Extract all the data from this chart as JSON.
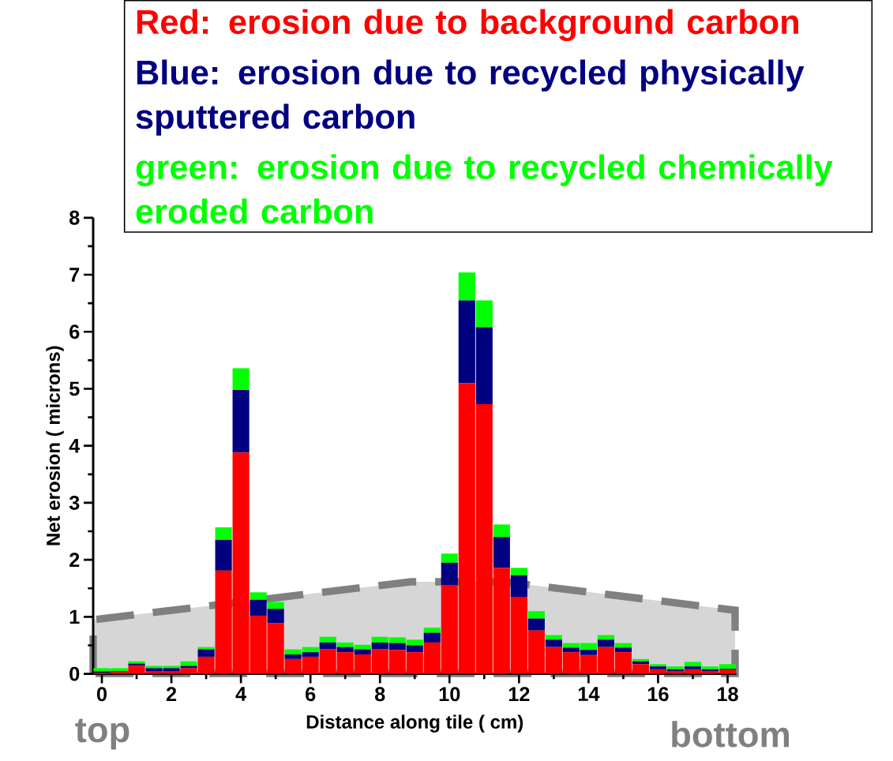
{
  "chart_data": {
    "type": "bar",
    "stacked": true,
    "xlabel": "Distance along tile ( cm)",
    "ylabel": "Net erosion ( microns)",
    "x": [
      0,
      0.5,
      1,
      1.5,
      2,
      2.5,
      3,
      3.5,
      4,
      4.5,
      5,
      5.5,
      6,
      6.5,
      7,
      7.5,
      8,
      8.5,
      9,
      9.5,
      10,
      10.5,
      11,
      11.5,
      12,
      12.5,
      13,
      13.5,
      14,
      14.5,
      15,
      15.5,
      16,
      16.5,
      17,
      17.5,
      18
    ],
    "series": [
      {
        "name": "Red: erosion due to background carbon",
        "color": "#ff0000",
        "values": [
          0.02,
          0.05,
          0.14,
          0.05,
          0.05,
          0.1,
          0.3,
          1.81,
          3.88,
          1.02,
          0.89,
          0.26,
          0.3,
          0.43,
          0.38,
          0.34,
          0.43,
          0.42,
          0.38,
          0.55,
          1.56,
          5.1,
          4.73,
          1.86,
          1.35,
          0.76,
          0.47,
          0.38,
          0.33,
          0.47,
          0.38,
          0.17,
          0.08,
          0.05,
          0.08,
          0.05,
          0.08
        ]
      },
      {
        "name": "Blue: erosion due to recycled physically sputtered carbon",
        "color": "#000080",
        "values": [
          0.02,
          0,
          0.04,
          0.05,
          0.05,
          0.04,
          0.13,
          0.54,
          1.1,
          0.28,
          0.25,
          0.08,
          0.08,
          0.12,
          0.09,
          0.09,
          0.12,
          0.12,
          0.12,
          0.17,
          0.39,
          1.45,
          1.35,
          0.54,
          0.38,
          0.21,
          0.13,
          0.08,
          0.09,
          0.13,
          0.08,
          0.05,
          0.05,
          0.03,
          0.05,
          0.03,
          0.01
        ]
      },
      {
        "name": "green: erosion due to recycled chemically eroded carbon",
        "color": "#00ff00",
        "values": [
          0.06,
          0.05,
          0.04,
          0.04,
          0.04,
          0.08,
          0.04,
          0.22,
          0.38,
          0.13,
          0.12,
          0.09,
          0.09,
          0.1,
          0.08,
          0.08,
          0.1,
          0.1,
          0.1,
          0.09,
          0.16,
          0.49,
          0.47,
          0.22,
          0.13,
          0.13,
          0.08,
          0.08,
          0.12,
          0.08,
          0.08,
          0.04,
          0.04,
          0.05,
          0.08,
          0.05,
          0.08
        ]
      }
    ],
    "xlim": [
      -0.25,
      18.25
    ],
    "xticks": [
      0,
      {
        "value": 1,
        "label": null
      },
      2,
      {
        "value": 3,
        "label": null
      },
      4,
      {
        "value": 5,
        "label": null
      },
      6,
      {
        "value": 7,
        "label": null
      },
      8,
      {
        "value": 9,
        "label": null
      },
      10,
      {
        "value": 11,
        "label": null
      },
      12,
      {
        "value": 13,
        "label": null
      },
      14,
      {
        "value": 15,
        "label": null
      },
      16,
      {
        "value": 17,
        "label": null
      },
      18
    ],
    "ylim": [
      0,
      8
    ],
    "yticks": [
      0,
      {
        "value": 0.5,
        "label": null
      },
      1,
      {
        "value": 1.5,
        "label": null
      },
      2,
      {
        "value": 2.5,
        "label": null
      },
      3,
      {
        "value": 3.5,
        "label": null
      },
      4,
      {
        "value": 4.5,
        "label": null
      },
      5,
      {
        "value": 5.5,
        "label": null
      },
      6,
      {
        "value": 6.5,
        "label": null
      },
      7,
      {
        "value": 7.5,
        "label": null
      },
      8
    ],
    "legend": "top",
    "annotations": [
      "top",
      "bottom"
    ]
  }
}
